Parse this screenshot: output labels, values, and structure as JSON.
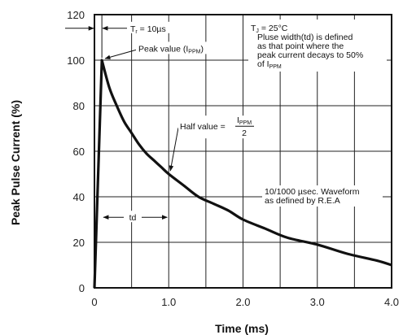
{
  "chart_data": {
    "type": "line",
    "xlabel": "Time (ms)",
    "ylabel": "Peak Pulse Current (%)",
    "xlim": [
      0,
      4.0
    ],
    "ylim": [
      0,
      120
    ],
    "x_ticks": [
      "0",
      "1.0",
      "2.0",
      "3.0",
      "4.0"
    ],
    "y_ticks": [
      "0",
      "20",
      "40",
      "60",
      "80",
      "100",
      "120"
    ],
    "grid": true,
    "series": [
      {
        "x": [
          0,
          0.1,
          0.2,
          0.3,
          0.4,
          0.5,
          0.6,
          0.7,
          0.8,
          0.9,
          1.0,
          1.2,
          1.4,
          1.6,
          1.8,
          2.0,
          2.3,
          2.6,
          3.0,
          3.4,
          3.8,
          4.0
        ],
        "y": [
          0,
          100,
          88,
          80,
          73,
          68,
          63,
          59,
          56,
          53,
          50,
          45,
          40,
          37,
          34,
          30,
          26,
          22,
          19,
          15,
          12,
          10
        ]
      }
    ],
    "annotations": {
      "tr": {
        "prefix": "T",
        "sub": "r",
        "suffix": " = 10µs"
      },
      "peak": {
        "prefix": "Peak value (I",
        "sub": "PPM",
        "suffix": ")"
      },
      "half": {
        "prefix": "Half value = ",
        "num_prefix": "I",
        "num_sub": "PPM",
        "den": "2"
      },
      "tj": {
        "prefix": "T",
        "sub": "J",
        "suffix": " = 25°C"
      },
      "pulse_lines": [
        "Pluse width(td) is defined",
        "as that point where the",
        "peak current decays to 50%"
      ],
      "pulse_last": {
        "prefix": "of I",
        "sub": "PPM"
      },
      "waveform_lines": [
        "10/1000 µsec. Waveform",
        "as defined by R.E.A"
      ],
      "td": "td"
    }
  }
}
